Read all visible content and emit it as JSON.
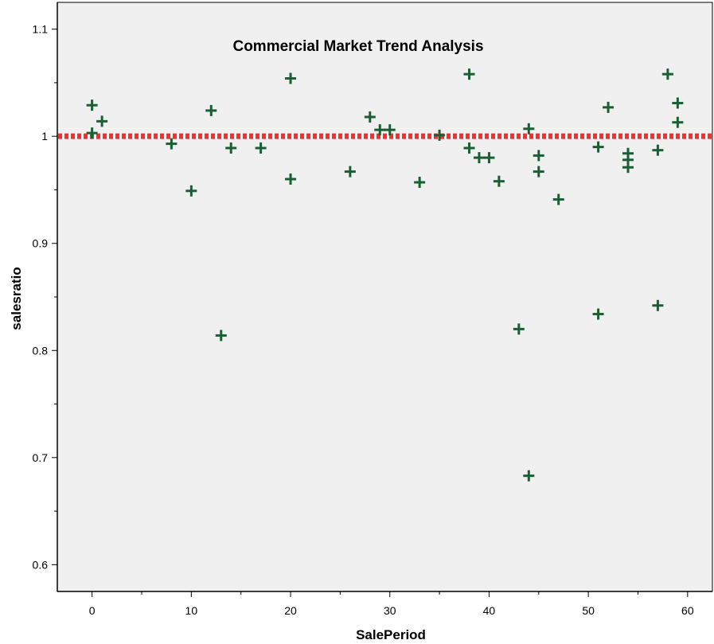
{
  "chart_data": {
    "type": "scatter",
    "title": "Commercial Market Trend Analysis",
    "xlabel": "SalePeriod",
    "ylabel": "salesratio",
    "xlim": [
      -3.5,
      62.5
    ],
    "ylim": [
      0.575,
      1.125
    ],
    "xticks": [
      0,
      10,
      20,
      30,
      40,
      50,
      60
    ],
    "xtick_labels": [
      "0",
      "10",
      "20",
      "30",
      "40",
      "50",
      "60"
    ],
    "yticks": [
      0.6,
      0.7,
      0.8,
      0.9,
      1.0,
      1.1
    ],
    "ytick_labels": [
      "0.6",
      "0.7",
      "0.8",
      "0.9",
      "1",
      "1.1"
    ],
    "reference_line": {
      "y": 1.0,
      "style": "dotted",
      "color": "#ff2b2b"
    },
    "grid": false,
    "background": "#f0f0f0",
    "marker": {
      "shape": "plus",
      "color": "#1a5e33"
    },
    "points": [
      {
        "x": 0,
        "y": 1.029
      },
      {
        "x": 0,
        "y": 1.003
      },
      {
        "x": 1,
        "y": 1.014
      },
      {
        "x": 8,
        "y": 0.993
      },
      {
        "x": 10,
        "y": 0.949
      },
      {
        "x": 12,
        "y": 1.024
      },
      {
        "x": 13,
        "y": 0.814
      },
      {
        "x": 14,
        "y": 0.989
      },
      {
        "x": 17,
        "y": 0.989
      },
      {
        "x": 20,
        "y": 1.054
      },
      {
        "x": 20,
        "y": 0.96
      },
      {
        "x": 26,
        "y": 0.967
      },
      {
        "x": 28,
        "y": 1.018
      },
      {
        "x": 29,
        "y": 1.006
      },
      {
        "x": 30,
        "y": 1.006
      },
      {
        "x": 33,
        "y": 0.957
      },
      {
        "x": 35,
        "y": 1.001
      },
      {
        "x": 38,
        "y": 1.058
      },
      {
        "x": 38,
        "y": 0.989
      },
      {
        "x": 39,
        "y": 0.98
      },
      {
        "x": 40,
        "y": 0.98
      },
      {
        "x": 41,
        "y": 0.958
      },
      {
        "x": 43,
        "y": 0.82
      },
      {
        "x": 44,
        "y": 1.007
      },
      {
        "x": 44,
        "y": 0.683
      },
      {
        "x": 45,
        "y": 0.982
      },
      {
        "x": 45,
        "y": 0.967
      },
      {
        "x": 47,
        "y": 0.941
      },
      {
        "x": 51,
        "y": 0.99
      },
      {
        "x": 51,
        "y": 0.834
      },
      {
        "x": 52,
        "y": 1.027
      },
      {
        "x": 54,
        "y": 0.984
      },
      {
        "x": 54,
        "y": 0.978
      },
      {
        "x": 54,
        "y": 0.971
      },
      {
        "x": 57,
        "y": 0.987
      },
      {
        "x": 57,
        "y": 0.842
      },
      {
        "x": 58,
        "y": 1.058
      },
      {
        "x": 59,
        "y": 1.031
      },
      {
        "x": 59,
        "y": 1.013
      }
    ]
  }
}
